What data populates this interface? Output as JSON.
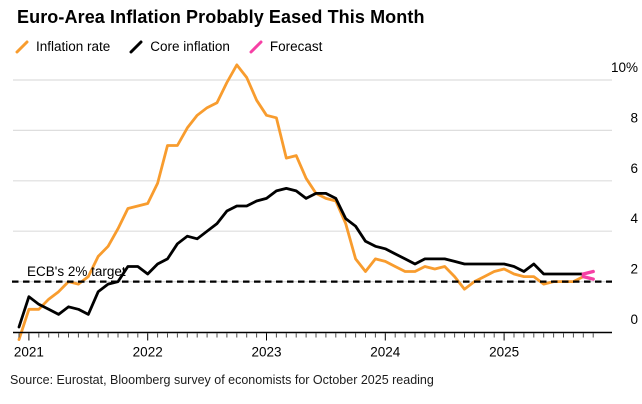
{
  "header": {
    "title": "Euro-Area Inflation Probably Eased This Month"
  },
  "legend": {
    "items": [
      {
        "label": "Inflation rate",
        "color": "#f89c2e"
      },
      {
        "label": "Core inflation",
        "color": "#000000"
      },
      {
        "label": "Forecast",
        "color": "#f640a5"
      }
    ]
  },
  "annotations": {
    "target_label": "ECB's 2% target"
  },
  "footer": {
    "source": "Source: Eurostat, Bloomberg survey of economists for October 2025 reading"
  },
  "chart_data": {
    "type": "line",
    "title": "Euro-Area Inflation Probably Eased This Month",
    "unit": "percent, year-over-year",
    "x_start": "2020-12",
    "x_end": "2025-10",
    "x_freq": "monthly",
    "grid": "horizontal",
    "legend_position": "top",
    "ylim": [
      0,
      10.8
    ],
    "y_ticks": [
      {
        "v": 0,
        "label": "0"
      },
      {
        "v": 2,
        "label": "2"
      },
      {
        "v": 4,
        "label": "4"
      },
      {
        "v": 6,
        "label": "6"
      },
      {
        "v": 8,
        "label": "8"
      },
      {
        "v": 10,
        "label": "10%"
      }
    ],
    "x_tick_labels": [
      "2021",
      "2022",
      "2023",
      "2024",
      "2025"
    ],
    "reference_line": {
      "label": "ECB's 2% target",
      "value": 2,
      "style": "dashed"
    },
    "series": [
      {
        "name": "Inflation rate",
        "color": "#f89c2e",
        "values": [
          -0.3,
          0.9,
          0.9,
          1.3,
          1.6,
          2.0,
          1.9,
          2.2,
          3.0,
          3.4,
          4.1,
          4.9,
          5.0,
          5.1,
          5.9,
          7.4,
          7.4,
          8.1,
          8.6,
          8.9,
          9.1,
          9.9,
          10.6,
          10.1,
          9.2,
          8.6,
          8.5,
          6.9,
          7.0,
          6.1,
          5.5,
          5.3,
          5.2,
          4.3,
          2.9,
          2.4,
          2.9,
          2.8,
          2.6,
          2.4,
          2.4,
          2.6,
          2.5,
          2.6,
          2.2,
          1.7,
          2.0,
          2.2,
          2.4,
          2.5,
          2.3,
          2.2,
          2.2,
          1.9,
          2.0,
          2.0,
          2.0,
          2.2
        ]
      },
      {
        "name": "Core inflation",
        "color": "#000000",
        "values": [
          0.2,
          1.4,
          1.1,
          0.9,
          0.7,
          1.0,
          0.9,
          0.7,
          1.6,
          1.9,
          2.0,
          2.6,
          2.6,
          2.3,
          2.7,
          2.9,
          3.5,
          3.8,
          3.7,
          4.0,
          4.3,
          4.8,
          5.0,
          5.0,
          5.2,
          5.3,
          5.6,
          5.7,
          5.6,
          5.3,
          5.5,
          5.5,
          5.3,
          4.5,
          4.2,
          3.6,
          3.4,
          3.3,
          3.1,
          2.9,
          2.7,
          2.9,
          2.9,
          2.9,
          2.8,
          2.7,
          2.7,
          2.7,
          2.7,
          2.7,
          2.6,
          2.4,
          2.7,
          2.3,
          2.3,
          2.3,
          2.3,
          2.3
        ]
      }
    ],
    "forecast": {
      "name": "Forecast",
      "color": "#f640a5",
      "month": "2025-10",
      "values": [
        {
          "series": "Inflation rate",
          "value": 2.1
        },
        {
          "series": "Core inflation",
          "value": 2.4
        }
      ]
    }
  }
}
